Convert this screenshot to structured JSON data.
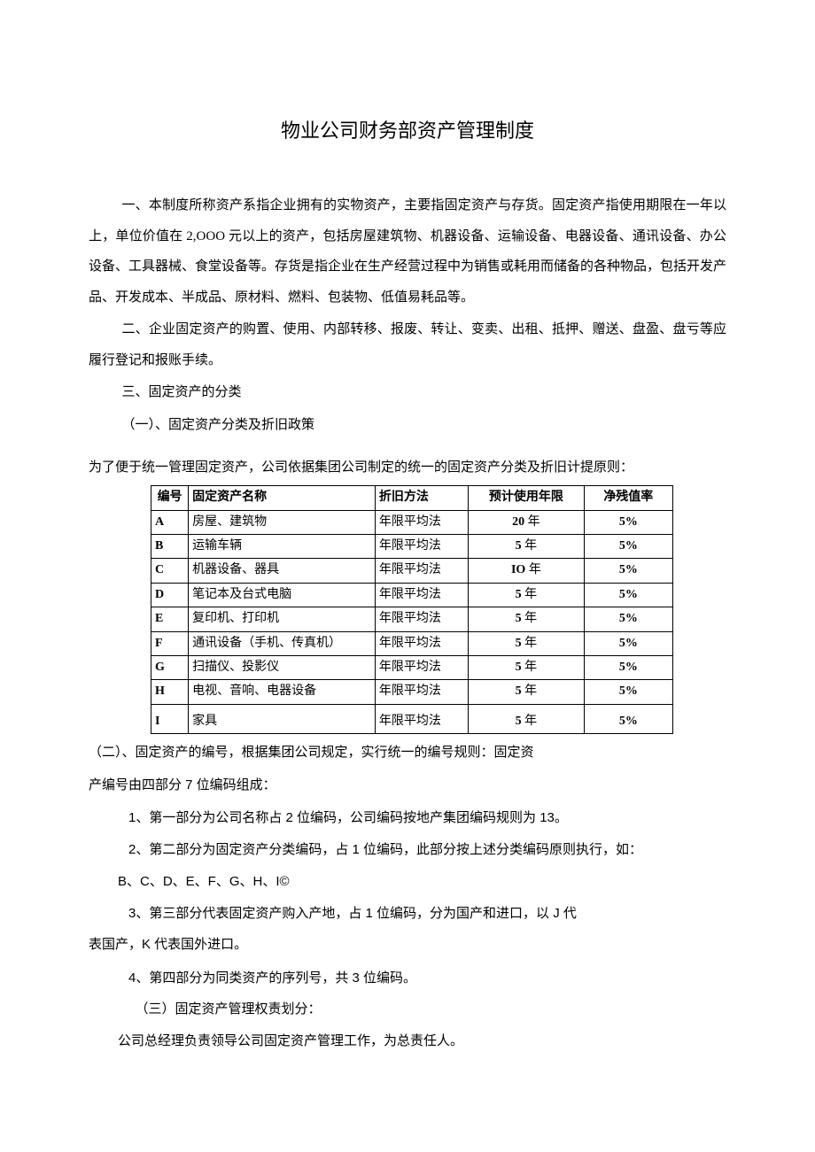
{
  "title": "物业公司财务部资产管理制度",
  "paragraphs": {
    "p1": "一、本制度所称资产系指企业拥有的实物资产，主要指固定资产与存货。固定资产指使用期限在一年以上，单位价值在 2,OOO 元以上的资产，包括房屋建筑物、机器设备、运输设备、电器设备、通讯设备、办公设备、工具器械、食堂设备等。存货是指企业在生产经营过程中为销售或耗用而储备的各种物品，包括开发产品、开发成本、半成品、原材料、燃料、包装物、低值易耗品等。",
    "p2": "二、企业固定资产的购置、使用、内部转移、报废、转让、变卖、出租、抵押、赠送、盘盈、盘亏等应履行登记和报账手续。",
    "p3": "三、固定资产的分类",
    "p4": "（一）、固定资产分类及折旧政策",
    "intro": "为了便于统一管理固定资产，公司依据集团公司制定的统一的固定资产分类及折旧计提原则：",
    "p5a": "（二）、固定资产的编号，根据集团公司规定，实行统一的编号规则：固定资",
    "p5b": "产编号由四部分 7 位编码组成：",
    "p6": "1、第一部分为公司名称占 2 位编码，公司编码按地产集团编码规则为 13。",
    "p7": "2、第二部分为固定资产分类编码，占 1 位编码，此部分按上述分类编码原则执行，如：",
    "p8": "B、C、D、E、F、G、H、I©",
    "p9": "3、第三部分代表固定资产购入产地，占 1 位编码，分为国产和进口，以 J 代",
    "p10": "表国产，K 代表国外进口。",
    "p11": "4、第四部分为同类资产的序列号，共 3 位编码。",
    "p12": "（三）固定资产管理权责划分：",
    "p13": "公司总经理负责领导公司固定资产管理工作，为总责任人。"
  },
  "table": {
    "headers": {
      "id": "编号",
      "name": "固定资产名称",
      "method": "折旧方法",
      "years": "预计使用年限",
      "rate": "净残值率"
    },
    "rows": [
      {
        "id": "A",
        "name": "房屋、建筑物",
        "method": "年限平均法",
        "years_num": "20",
        "years_unit": "年",
        "rate": "5%"
      },
      {
        "id": "B",
        "name": "运输车辆",
        "method": "年限平均法",
        "years_num": "5",
        "years_unit": "年",
        "rate": "5%"
      },
      {
        "id": "C",
        "name": "机器设备、器具",
        "method": "年限平均法",
        "years_num": "IO",
        "years_unit": "年",
        "rate": "5%"
      },
      {
        "id": "D",
        "name": "笔记本及台式电脑",
        "method": "年限平均法",
        "years_num": "5",
        "years_unit": "年",
        "rate": "5%"
      },
      {
        "id": "E",
        "name": "复印机、打印机",
        "method": "年限平均法",
        "years_num": "5",
        "years_unit": "年",
        "rate": "5%"
      },
      {
        "id": "F",
        "name": "通讯设备（手机、传真机）",
        "method": "年限平均法",
        "years_num": "5",
        "years_unit": "年",
        "rate": "5%"
      },
      {
        "id": "G",
        "name": "扫描仪、投影仪",
        "method": "年限平均法",
        "years_num": "5",
        "years_unit": "年",
        "rate": "5%"
      },
      {
        "id": "H",
        "name": "电视、音响、电器设备",
        "method": "年限平均法",
        "years_num": "5",
        "years_unit": "年",
        "rate": "5%"
      },
      {
        "id": "I",
        "name": "家具",
        "method": "年限平均法",
        "years_num": "5",
        "years_unit": "年",
        "rate": "5%"
      }
    ]
  }
}
